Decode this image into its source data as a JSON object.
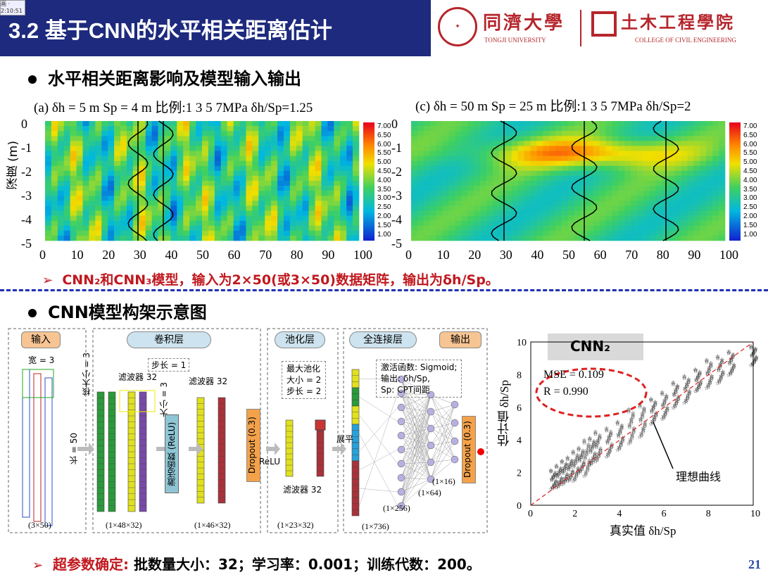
{
  "header": {
    "title": "3.2 基于CNN的水平相关距离估计",
    "tiny_tag": "画 · 2:10:51",
    "logo1_cn": "同濟大學",
    "logo1_en": "TONGJI UNIVERSITY",
    "logo2_cn": "土木工程學院",
    "logo2_en": "COLLEGE OF CIVIL ENGINEERING"
  },
  "section1": {
    "heading": "水平相关距离影响及模型输入输出",
    "panel_a_caption": "(a) δh = 5 m  Sp = 4 m 比例:1   3   5   7MPa δh/Sp=1.25",
    "panel_c_caption": "(c) δh = 50 m  Sp = 25 m 比例:1   3   5 7MPa δh/Sp=2",
    "ylabel": "深度 (m)",
    "yticks": [
      "0",
      "-1",
      "-2",
      "-3",
      "-4",
      "-5"
    ],
    "xticks": [
      "0",
      "10",
      "20",
      "30",
      "40",
      "50",
      "60",
      "70",
      "80",
      "90",
      "100"
    ],
    "colorbar": [
      "7.00",
      "6.50",
      "6.00",
      "5.50",
      "5.00",
      "4.50",
      "4.00",
      "3.50",
      "3.00",
      "2.50",
      "2.00",
      "1.50",
      "1.00"
    ],
    "note_prefix": "CNN₂和CNN₃模型，输入为2×50(或3×50)数据矩阵，",
    "note_red": "输出为δh/Sp。"
  },
  "section2": {
    "heading": "CNN模型构架示意图",
    "input_label": "输入",
    "conv_label": "卷积层",
    "pool_label": "池化层",
    "fc_label": "全连接层",
    "output_label": "输出",
    "width_label": "宽 = 3",
    "kernel_label": "核大小 = 3",
    "length_label": "长 = 50",
    "filters32a": "滤波器 32",
    "stride1": "步长 = 1",
    "size3": "大小 = 3",
    "filters32b": "滤波器 32",
    "activation": "激活函数 (ReLU)",
    "dropout1": "Dropout (0.3)",
    "relu": "ReLU",
    "maxpool": "最大池化",
    "pool_size": "大小 = 2",
    "pool_stride": "步长 = 2",
    "filters32c": "滤波器 32",
    "flatten": "展平",
    "fc_act": "激活函数: Sigmoid;",
    "fc_out": "输出: δh/Sp,",
    "fc_sp": "Sp: CPT间距",
    "dropout2": "Dropout (0.3)",
    "dim_in": "(3×50)",
    "dim_c1": "(1×48×32)",
    "dim_c2": "(1×46×32)",
    "dim_p": "(1×23×32)",
    "dim_f": "(1×736)",
    "dim_256": "(1×256)",
    "dim_64": "(1×64)",
    "dim_16": "(1×16)"
  },
  "scatter": {
    "badge": "CNN₂",
    "mse": "MSE = 0.109",
    "r": "R = 0.990",
    "ideal": "理想曲线",
    "xlabel": "真实值 δh/Sp",
    "ylabel": "估计值 δh/Sp",
    "ticks": [
      "0",
      "2",
      "4",
      "6",
      "8",
      "10"
    ]
  },
  "chart_data": {
    "type": "scatter",
    "xlabel": "真实值 δh/Sp",
    "ylabel": "估计值 δh/Sp",
    "xlim": [
      0,
      10
    ],
    "ylim": [
      0,
      10
    ],
    "annotations": [
      "MSE = 0.109",
      "R = 0.990",
      "理想曲线"
    ],
    "x_groups": [
      1,
      1.25,
      1.5,
      1.75,
      2,
      2.25,
      2.5,
      2.75,
      3,
      3.5,
      4,
      4.5,
      5,
      5.5,
      6,
      6.5,
      7,
      7.5,
      8,
      8.5,
      9,
      10
    ],
    "y_ranges": [
      [
        1,
        2.2
      ],
      [
        1.1,
        2.5
      ],
      [
        1.3,
        2.8
      ],
      [
        1.5,
        3
      ],
      [
        1.5,
        3.4
      ],
      [
        2,
        3.6
      ],
      [
        1.8,
        4.1
      ],
      [
        2.5,
        4.2
      ],
      [
        2.7,
        4.6
      ],
      [
        3,
        4.8
      ],
      [
        3.4,
        5.2
      ],
      [
        3.8,
        6
      ],
      [
        4.2,
        6.3
      ],
      [
        5,
        6.6
      ],
      [
        5.3,
        7
      ],
      [
        6,
        7.6
      ],
      [
        6.3,
        8
      ],
      [
        7,
        8.4
      ],
      [
        7.2,
        9
      ],
      [
        7.5,
        9.2
      ],
      [
        8,
        9.5
      ],
      [
        8.6,
        9.8
      ]
    ]
  },
  "footer": {
    "note_red": "超参数确定:",
    "note": "批数量大小：32；学习率：0.001；训练代数：200。",
    "page": "21"
  }
}
